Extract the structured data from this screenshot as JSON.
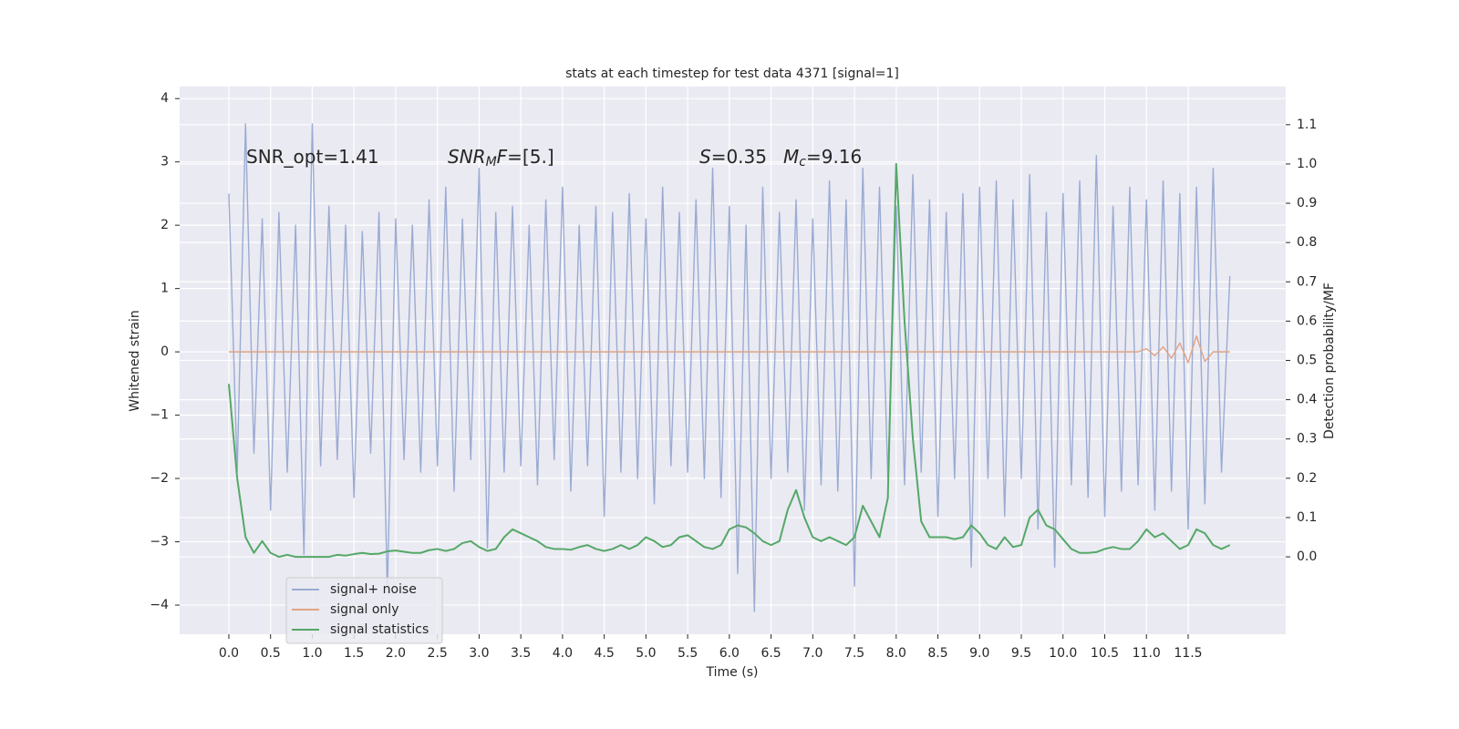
{
  "chart_data": {
    "type": "line",
    "title": "stats at each timestep for test data 4371 [signal=1]",
    "x_label": "Time (s)",
    "y_label": "Whitened strain",
    "y2_label": "Detection probability/MF",
    "annotations": [
      [
        {
          "text": "SNR_opt=1.41"
        }
      ],
      [
        {
          "text": "SNR",
          "italic": true
        },
        {
          "text": "M",
          "italic": true,
          "sub": true
        },
        {
          "text": "F",
          "italic": true
        },
        {
          "text": "=[5.]"
        }
      ],
      [
        {
          "text": "S",
          "italic": true
        },
        {
          "text": "=0.35"
        }
      ],
      [
        {
          "text": "M",
          "italic": true
        },
        {
          "text": "c",
          "italic": true,
          "sub": true
        },
        {
          "text": "=9.16"
        }
      ]
    ],
    "x": [
      0,
      0.1,
      0.2,
      0.3,
      0.4,
      0.5,
      0.6,
      0.7,
      0.8,
      0.9,
      1.0,
      1.1,
      1.2,
      1.3,
      1.4,
      1.5,
      1.6,
      1.7,
      1.8,
      1.9,
      2.0,
      2.1,
      2.2,
      2.3,
      2.4,
      2.5,
      2.6,
      2.7,
      2.8,
      2.9,
      3.0,
      3.1,
      3.2,
      3.3,
      3.4,
      3.5,
      3.6,
      3.7,
      3.8,
      3.9,
      4.0,
      4.1,
      4.2,
      4.3,
      4.4,
      4.5,
      4.6,
      4.7,
      4.8,
      4.9,
      5.0,
      5.1,
      5.2,
      5.3,
      5.4,
      5.5,
      5.6,
      5.7,
      5.8,
      5.9,
      6.0,
      6.1,
      6.2,
      6.3,
      6.4,
      6.5,
      6.6,
      6.7,
      6.8,
      6.9,
      7.0,
      7.1,
      7.2,
      7.3,
      7.4,
      7.5,
      7.6,
      7.7,
      7.8,
      7.9,
      8.0,
      8.1,
      8.2,
      8.3,
      8.4,
      8.5,
      8.6,
      8.7,
      8.8,
      8.9,
      9.0,
      9.1,
      9.2,
      9.3,
      9.4,
      9.5,
      9.6,
      9.7,
      9.8,
      9.9,
      10.0,
      10.1,
      10.2,
      10.3,
      10.4,
      10.5,
      10.6,
      10.7,
      10.8,
      10.9,
      11.0,
      11.1,
      11.2,
      11.3,
      11.4,
      11.5,
      11.6,
      11.7,
      11.8,
      11.9,
      12.0
    ],
    "series": [
      {
        "name": "signal+ noise",
        "color": "#9aabd3",
        "values": [
          2.5,
          -1.9,
          3.6,
          -1.6,
          2.1,
          -2.5,
          2.2,
          -1.9,
          2.0,
          -3.2,
          3.6,
          -1.8,
          2.3,
          -1.7,
          2.0,
          -2.3,
          1.9,
          -1.6,
          2.2,
          -3.8,
          2.1,
          -1.7,
          2.0,
          -1.9,
          2.4,
          -1.8,
          2.6,
          -2.2,
          2.1,
          -1.7,
          2.9,
          -3.1,
          2.2,
          -1.9,
          2.3,
          -1.8,
          2.0,
          -2.1,
          2.4,
          -1.7,
          2.6,
          -2.2,
          2.0,
          -1.8,
          2.3,
          -2.6,
          2.2,
          -1.9,
          2.5,
          -2.0,
          2.1,
          -2.4,
          2.6,
          -1.8,
          2.2,
          -1.9,
          2.4,
          -2.0,
          2.9,
          -2.3,
          2.3,
          -3.5,
          2.0,
          -4.1,
          2.6,
          -2.0,
          2.2,
          -1.9,
          2.4,
          -2.5,
          2.1,
          -2.1,
          2.7,
          -2.2,
          2.4,
          -3.7,
          2.9,
          -2.0,
          2.6,
          -2.0,
          2.3,
          -2.1,
          2.8,
          -1.9,
          2.4,
          -2.6,
          2.2,
          -2.0,
          2.5,
          -3.4,
          2.6,
          -2.0,
          2.7,
          -2.6,
          2.4,
          -2.0,
          2.8,
          -2.8,
          2.2,
          -3.4,
          2.5,
          -2.1,
          2.7,
          -2.3,
          3.1,
          -2.6,
          2.3,
          -2.2,
          2.6,
          -2.1,
          2.4,
          -2.5,
          2.7,
          -2.2,
          2.5,
          -2.8,
          2.6,
          -2.4,
          2.9,
          -1.9,
          1.2
        ]
      },
      {
        "name": "signal only",
        "color": "#e0a386",
        "values": [
          0,
          0,
          0,
          0,
          0,
          0,
          0,
          0,
          0,
          0,
          0,
          0,
          0,
          0,
          0,
          0,
          0,
          0,
          0,
          0,
          0,
          0,
          0,
          0,
          0,
          0,
          0,
          0,
          0,
          0,
          0,
          0,
          0,
          0,
          0,
          0,
          0,
          0,
          0,
          0,
          0,
          0,
          0,
          0,
          0,
          0,
          0,
          0,
          0,
          0,
          0,
          0,
          0,
          0,
          0,
          0,
          0,
          0,
          0,
          0,
          0,
          0,
          0,
          0,
          0,
          0,
          0,
          0,
          0,
          0,
          0,
          0,
          0,
          0,
          0,
          0,
          0,
          0,
          0,
          0,
          0,
          0,
          0,
          0,
          0,
          0,
          0,
          0,
          0,
          0,
          0,
          0,
          0,
          0,
          0,
          0,
          0,
          0,
          0,
          0,
          0,
          0,
          0,
          0,
          0,
          0,
          0,
          0,
          0,
          0,
          0.05,
          -0.06,
          0.08,
          -0.1,
          0.14,
          -0.17,
          0.25,
          -0.15,
          0,
          0,
          0
        ]
      },
      {
        "name": "signal statistics",
        "color": "#55a868",
        "axis": "y2",
        "values": [
          0.44,
          0.2,
          0.05,
          0.01,
          0.04,
          0.01,
          0,
          0.005,
          0,
          0,
          0,
          0,
          0,
          0.005,
          0.003,
          0.007,
          0.01,
          0.007,
          0.008,
          0.014,
          0.016,
          0.013,
          0.01,
          0.01,
          0.017,
          0.02,
          0.015,
          0.02,
          0.035,
          0.04,
          0.025,
          0.015,
          0.02,
          0.05,
          0.07,
          0.06,
          0.05,
          0.04,
          0.025,
          0.02,
          0.02,
          0.018,
          0.025,
          0.03,
          0.02,
          0.015,
          0.02,
          0.03,
          0.02,
          0.03,
          0.05,
          0.04,
          0.025,
          0.03,
          0.05,
          0.055,
          0.04,
          0.025,
          0.02,
          0.03,
          0.07,
          0.08,
          0.075,
          0.06,
          0.04,
          0.03,
          0.04,
          0.12,
          0.17,
          0.1,
          0.05,
          0.04,
          0.05,
          0.04,
          0.03,
          0.05,
          0.13,
          0.09,
          0.05,
          0.15,
          1.0,
          0.6,
          0.3,
          0.09,
          0.05,
          0.05,
          0.05,
          0.045,
          0.05,
          0.08,
          0.06,
          0.03,
          0.02,
          0.05,
          0.025,
          0.03,
          0.1,
          0.12,
          0.08,
          0.07,
          0.045,
          0.02,
          0.01,
          0.01,
          0.012,
          0.02,
          0.025,
          0.02,
          0.02,
          0.04,
          0.07,
          0.05,
          0.06,
          0.04,
          0.02,
          0.03,
          0.07,
          0.06,
          0.03,
          0.02,
          0.03
        ]
      }
    ],
    "xlim": [
      -0.59,
      12.67
    ],
    "xticks": [
      {
        "value": 0,
        "label": "0.0"
      },
      0.5,
      {
        "value": 1,
        "label": "1.0"
      },
      1.5,
      {
        "value": 2,
        "label": "2.0"
      },
      2.5,
      {
        "value": 3,
        "label": "3.0"
      },
      3.5,
      {
        "value": 4,
        "label": "4.0"
      },
      4.5,
      {
        "value": 5,
        "label": "5.0"
      },
      5.5,
      {
        "value": 6,
        "label": "6.0"
      },
      6.5,
      {
        "value": 7,
        "label": "7.0"
      },
      7.5,
      {
        "value": 8,
        "label": "8.0"
      },
      8.5,
      {
        "value": 9,
        "label": "9.0"
      },
      9.5,
      {
        "value": 10,
        "label": "10.0"
      },
      10.5,
      {
        "value": 11,
        "label": "11.0"
      },
      11.5
    ],
    "ylim": [
      -4.46,
      4.19
    ],
    "yticks": [
      {
        "value": -4,
        "label": "−4"
      },
      {
        "value": -3,
        "label": "−3"
      },
      {
        "value": -2,
        "label": "−2"
      },
      {
        "value": -1,
        "label": "−1"
      },
      0,
      1,
      2,
      3,
      4
    ],
    "y2lim": [
      -0.197,
      1.197
    ],
    "y2ticks": [
      {
        "value": 0,
        "label": "0.0"
      },
      0.1,
      0.2,
      0.3,
      0.4,
      0.5,
      0.6,
      0.7,
      0.8,
      0.9,
      {
        "value": 1,
        "label": "1.0"
      },
      1.1
    ],
    "grid": true,
    "legend_position": "lower left"
  }
}
